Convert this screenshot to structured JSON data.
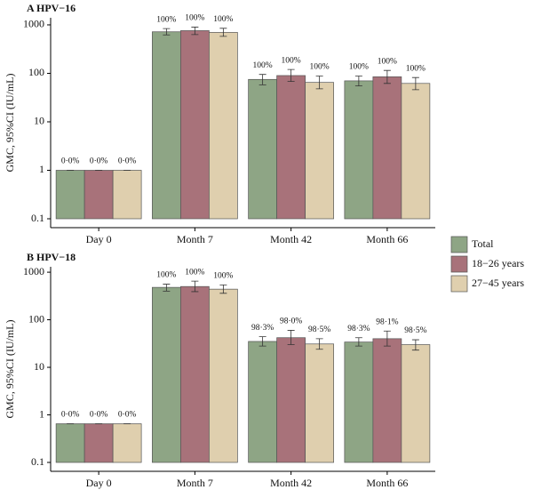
{
  "chart_data": [
    {
      "type": "bar",
      "title": "A HPV−16",
      "y_label": "GMC, 95%CI (IU/mL)",
      "log_scale": true,
      "categories": [
        "Day 0",
        "Month 7",
        "Month 42",
        "Month 66"
      ],
      "ylim": [
        0.1,
        1400
      ],
      "yticks": [
        0.1,
        1,
        10,
        100,
        1000
      ],
      "series": [
        {
          "name": "Total",
          "color": "#8ea585",
          "values": [
            1,
            720,
            75,
            70
          ],
          "ci_low": [
            1,
            620,
            58,
            55
          ],
          "ci_high": [
            1,
            840,
            95,
            88
          ],
          "seroconversion_labels": [
            "0·0%",
            "100%",
            "100%",
            "100%"
          ]
        },
        {
          "name": "18−26 years",
          "color": "#a8727a",
          "values": [
            1,
            760,
            90,
            85
          ],
          "ci_low": [
            1,
            630,
            68,
            62
          ],
          "ci_high": [
            1,
            900,
            120,
            115
          ],
          "seroconversion_labels": [
            "0·0%",
            "100%",
            "100%",
            "100%"
          ]
        },
        {
          "name": "27−45 years",
          "color": "#dfcfae",
          "values": [
            1,
            700,
            65,
            62
          ],
          "ci_low": [
            1,
            580,
            48,
            46
          ],
          "ci_high": [
            1,
            850,
            88,
            82
          ],
          "seroconversion_labels": [
            "0·0%",
            "100%",
            "100%",
            "100%"
          ]
        }
      ]
    },
    {
      "type": "bar",
      "title": "B HPV−18",
      "y_label": "GMC, 95%CI (IU/mL)",
      "log_scale": true,
      "categories": [
        "Day 0",
        "Month 7",
        "Month 42",
        "Month 66"
      ],
      "ylim": [
        0.1,
        1300
      ],
      "yticks": [
        0.1,
        1,
        10,
        100,
        1000
      ],
      "series": [
        {
          "name": "Total",
          "color": "#8ea585",
          "values": [
            0.65,
            480,
            35,
            34
          ],
          "ci_low": [
            0.65,
            400,
            28,
            28
          ],
          "ci_high": [
            0.65,
            560,
            44,
            42
          ],
          "seroconversion_labels": [
            "0·0%",
            "100%",
            "98·3%",
            "98·3%"
          ]
        },
        {
          "name": "18−26 years",
          "color": "#a8727a",
          "values": [
            0.65,
            500,
            42,
            40
          ],
          "ci_low": [
            0.65,
            390,
            30,
            28
          ],
          "ci_high": [
            0.65,
            650,
            60,
            58
          ],
          "seroconversion_labels": [
            "0·0%",
            "100%",
            "98·0%",
            "98·1%"
          ]
        },
        {
          "name": "27−45 years",
          "color": "#dfcfae",
          "values": [
            0.65,
            440,
            31,
            30
          ],
          "ci_low": [
            0.65,
            360,
            24,
            23
          ],
          "ci_high": [
            0.65,
            540,
            40,
            38
          ],
          "seroconversion_labels": [
            "0·0%",
            "100%",
            "98·5%",
            "98·5%"
          ]
        }
      ]
    }
  ]
}
